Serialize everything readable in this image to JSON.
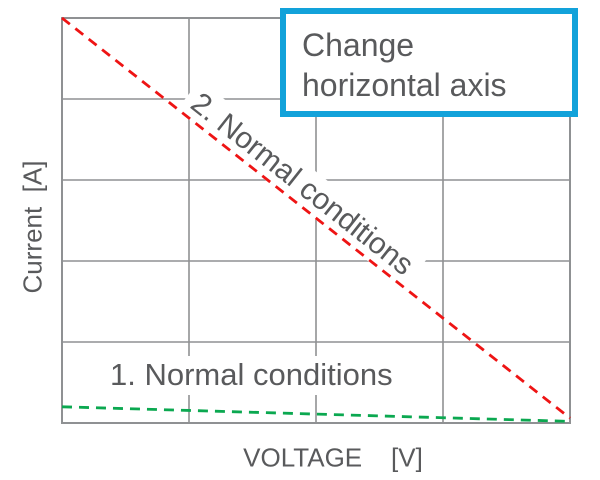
{
  "chart_data": {
    "type": "line",
    "title": "",
    "xlabel": "VOLTAGE    [V]",
    "ylabel": "Current  [A]",
    "x_ticks": [],
    "y_ticks": [],
    "grid": {
      "visible": true,
      "columns": 4,
      "rows": 5,
      "color": "#8f9193"
    },
    "legend_position": "inline-labels",
    "axes_note": "no numeric tick labels shown; normalized coordinates estimated from plot area",
    "series": [
      {
        "name": "1. Normal conditions",
        "color": "#0ba850",
        "line_style": "dashed",
        "points_norm": [
          [
            0.0,
            0.04
          ],
          [
            0.25,
            0.031
          ],
          [
            0.5,
            0.022
          ],
          [
            0.75,
            0.013
          ],
          [
            1.0,
            0.004
          ]
        ]
      },
      {
        "name": "2. Normal conditions",
        "color": "#ee1414",
        "line_style": "dashed",
        "points_norm": [
          [
            0.0,
            1.0
          ],
          [
            1.0,
            0.012
          ]
        ]
      }
    ]
  },
  "callout": {
    "line1": "Change",
    "line2": "horizontal axis",
    "border_color": "#12a2da"
  },
  "colors": {
    "text": "#595a5c",
    "grid": "#8f9193",
    "series1_green": "#0ba850",
    "series2_red": "#ee1414",
    "callout_border": "#12a2da",
    "background": "#ffffff"
  }
}
